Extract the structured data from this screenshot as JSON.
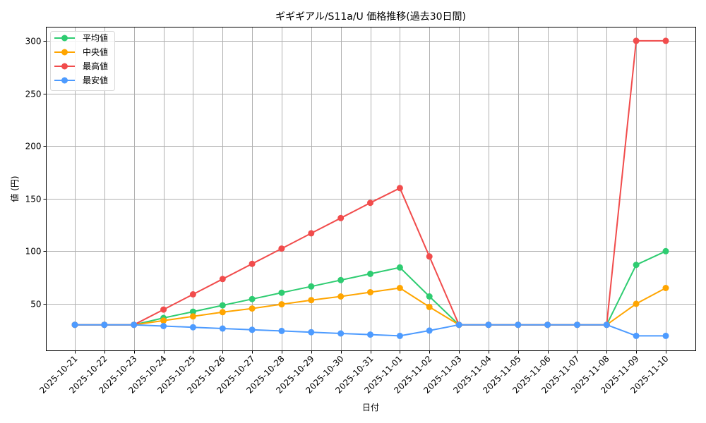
{
  "chart_data": {
    "type": "line",
    "title": "ギギギアル/S11a/U 価格推移(過去30日間)",
    "xlabel": "日付",
    "ylabel": "値 (円)",
    "ylim": [
      5,
      314
    ],
    "yticks": [
      50,
      100,
      150,
      200,
      250,
      300
    ],
    "grid": true,
    "legend_position": "upper left",
    "categories": [
      "2025-10-21",
      "2025-10-22",
      "2025-10-23",
      "2025-10-24",
      "2025-10-25",
      "2025-10-26",
      "2025-10-27",
      "2025-10-28",
      "2025-10-29",
      "2025-10-30",
      "2025-10-31",
      "2025-11-01",
      "2025-11-02",
      "2025-11-03",
      "2025-11-04",
      "2025-11-05",
      "2025-11-06",
      "2025-11-07",
      "2025-11-08",
      "2025-11-09",
      "2025-11-10"
    ],
    "series": [
      {
        "name": "平均値",
        "color": "#2ecc71",
        "values": [
          30,
          30,
          30,
          36.5,
          42.5,
          48.5,
          54.5,
          60.5,
          66.5,
          72.5,
          78.5,
          84.5,
          57,
          30,
          30,
          30,
          30,
          30,
          30,
          87,
          100
        ]
      },
      {
        "name": "中央値",
        "color": "#ffa500",
        "values": [
          30,
          30,
          30,
          34,
          38,
          42,
          45.5,
          49.5,
          53.5,
          57,
          61,
          65,
          47,
          30,
          30,
          30,
          30,
          30,
          30,
          50,
          65
        ]
      },
      {
        "name": "最高値",
        "color": "#f14c4c",
        "values": [
          30,
          30,
          30,
          44.5,
          59,
          73.5,
          88,
          102.5,
          117,
          131.5,
          146,
          160,
          95,
          30,
          30,
          30,
          30,
          30,
          30,
          300,
          300
        ]
      },
      {
        "name": "最安値",
        "color": "#4d9bff",
        "values": [
          30,
          30,
          30,
          28.8,
          27.7,
          26.5,
          25.3,
          24.2,
          23,
          21.8,
          20.7,
          19.5,
          24.5,
          30,
          30,
          30,
          30,
          30,
          30,
          19.5,
          19.5
        ]
      }
    ]
  },
  "colors": {
    "grid": "#b0b0b0",
    "axis": "#000000",
    "legend_border": "#d9d9d9"
  }
}
